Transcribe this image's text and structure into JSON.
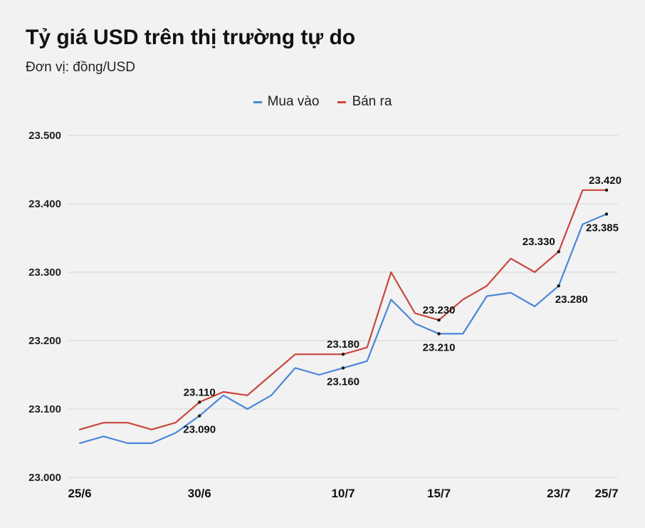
{
  "header": {
    "title": "Tỷ giá USD trên thị trường tự do",
    "subtitle": "Đơn vị: đồng/USD"
  },
  "colors": {
    "buy": "#4a86d8",
    "sell": "#c9463d",
    "grid": "#d4d4d4"
  },
  "chart_data": {
    "type": "line",
    "title": "Tỷ giá USD trên thị trường tự do",
    "subtitle": "Đơn vị: đồng/USD",
    "ylim": [
      23000,
      23500
    ],
    "yticks": [
      23000,
      23100,
      23200,
      23300,
      23400,
      23500
    ],
    "ytick_labels": [
      "23.000",
      "23.100",
      "23.200",
      "23.300",
      "23.400",
      "23.500"
    ],
    "grid": true,
    "legend": "top-center",
    "x_labels": [
      {
        "index": 0,
        "label": "25/6"
      },
      {
        "index": 5,
        "label": "30/6"
      },
      {
        "index": 11,
        "label": "10/7"
      },
      {
        "index": 15,
        "label": "15/7"
      },
      {
        "index": 20,
        "label": "23/7"
      },
      {
        "index": 22,
        "label": "25/7"
      }
    ],
    "series": [
      {
        "name": "Mua vào",
        "color": "#4a86d8",
        "values": [
          23050,
          23060,
          23050,
          23050,
          23065,
          23090,
          23120,
          23100,
          23120,
          23160,
          23150,
          23160,
          23170,
          23260,
          23225,
          23210,
          23210,
          23265,
          23270,
          23250,
          23280,
          23370,
          23385
        ]
      },
      {
        "name": "Bán ra",
        "color": "#c9463d",
        "values": [
          23070,
          23080,
          23080,
          23070,
          23080,
          23110,
          23125,
          23120,
          23150,
          23180,
          23180,
          23180,
          23190,
          23300,
          23240,
          23230,
          23260,
          23280,
          23320,
          23300,
          23330,
          23420,
          23420
        ]
      }
    ],
    "annotations": [
      {
        "series": 1,
        "index": 5,
        "text": "23.110",
        "pos": "above"
      },
      {
        "series": 0,
        "index": 5,
        "text": "23.090",
        "pos": "below"
      },
      {
        "series": 1,
        "index": 11,
        "text": "23.180",
        "pos": "above"
      },
      {
        "series": 0,
        "index": 11,
        "text": "23.160",
        "pos": "below"
      },
      {
        "series": 1,
        "index": 15,
        "text": "23.230",
        "pos": "above"
      },
      {
        "series": 0,
        "index": 15,
        "text": "23.210",
        "pos": "below"
      },
      {
        "series": 1,
        "index": 20,
        "text": "23.330",
        "pos": "above"
      },
      {
        "series": 0,
        "index": 20,
        "text": "23.280",
        "pos": "below"
      },
      {
        "series": 1,
        "index": 22,
        "text": "23.420",
        "pos": "above"
      },
      {
        "series": 0,
        "index": 22,
        "text": "23.385",
        "pos": "below"
      }
    ]
  }
}
